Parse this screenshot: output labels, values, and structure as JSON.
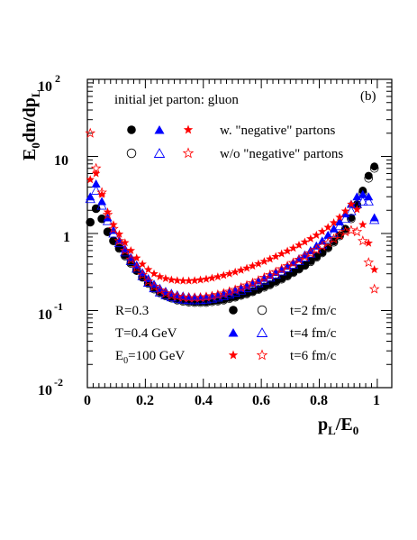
{
  "chart_data": {
    "type": "scatter",
    "panel_label": "(b)",
    "ylabel": "E0dn/dpL",
    "xlabel": "pL/E0",
    "yscale": "log",
    "xlim": [
      0,
      1.05
    ],
    "ylim": [
      0.01,
      100
    ],
    "x_ticks": [
      "0",
      "0.2",
      "0.4",
      "0.6",
      "0.8",
      "1"
    ],
    "y_ticks": [
      {
        "value": 100,
        "label": "10 2"
      },
      {
        "value": 10,
        "label": "10"
      },
      {
        "value": 1,
        "label": "1"
      },
      {
        "value": 0.1,
        "label": "10 -1"
      },
      {
        "value": 0.01,
        "label": "10 -2"
      }
    ],
    "legend_header": "initial jet parton: gluon",
    "legend_rows": [
      "w.  \"negative\" partons",
      "w/o \"negative\" partons"
    ],
    "params": [
      "R=0.3",
      "T=0.4 GeV",
      "E0=100 GeV"
    ],
    "time_labels": [
      "t=2 fm/c",
      "t=4 fm/c",
      "t=6 fm/c"
    ],
    "colors": {
      "t2": "#000000",
      "t4": "#0000ff",
      "t6": "#ff0000"
    },
    "x": [
      0.01,
      0.03,
      0.05,
      0.07,
      0.09,
      0.11,
      0.13,
      0.15,
      0.17,
      0.19,
      0.21,
      0.23,
      0.25,
      0.27,
      0.29,
      0.31,
      0.33,
      0.35,
      0.37,
      0.39,
      0.41,
      0.43,
      0.45,
      0.47,
      0.49,
      0.51,
      0.53,
      0.55,
      0.57,
      0.59,
      0.61,
      0.63,
      0.65,
      0.67,
      0.69,
      0.71,
      0.73,
      0.75,
      0.77,
      0.79,
      0.81,
      0.83,
      0.85,
      0.87,
      0.89,
      0.91,
      0.93,
      0.95,
      0.97,
      0.99
    ],
    "series": [
      {
        "name": "t=2 fm/c w. \"negative\" partons",
        "marker": "circle-filled",
        "color": "#000000",
        "values": [
          1.4,
          2.1,
          1.55,
          1.05,
          0.81,
          0.65,
          0.52,
          0.42,
          0.33,
          0.27,
          0.23,
          0.195,
          0.175,
          0.158,
          0.148,
          0.14,
          0.135,
          0.132,
          0.13,
          0.13,
          0.13,
          0.133,
          0.136,
          0.14,
          0.146,
          0.152,
          0.16,
          0.168,
          0.178,
          0.19,
          0.205,
          0.22,
          0.24,
          0.26,
          0.285,
          0.315,
          0.35,
          0.39,
          0.44,
          0.5,
          0.57,
          0.66,
          0.79,
          0.95,
          1.15,
          1.6,
          2.4,
          3.6,
          5.6,
          7.4
        ]
      },
      {
        "name": "t=2 fm/c w/o \"negative\" partons",
        "marker": "circle-open",
        "color": "#000000",
        "values": [
          1.4,
          2.1,
          1.55,
          1.05,
          0.8,
          0.64,
          0.51,
          0.41,
          0.33,
          0.27,
          0.225,
          0.19,
          0.17,
          0.155,
          0.145,
          0.137,
          0.132,
          0.129,
          0.127,
          0.127,
          0.127,
          0.13,
          0.133,
          0.137,
          0.143,
          0.149,
          0.157,
          0.165,
          0.175,
          0.187,
          0.2,
          0.216,
          0.235,
          0.255,
          0.28,
          0.31,
          0.345,
          0.385,
          0.43,
          0.49,
          0.56,
          0.65,
          0.77,
          0.93,
          1.12,
          1.55,
          2.3,
          3.4,
          5.2,
          7.0
        ]
      },
      {
        "name": "t=4 fm/c w. \"negative\" partons",
        "marker": "triangle-filled",
        "color": "#0000ff",
        "values": [
          3.0,
          4.4,
          2.6,
          1.6,
          1.1,
          0.82,
          0.63,
          0.49,
          0.39,
          0.31,
          0.26,
          0.22,
          0.195,
          0.178,
          0.168,
          0.16,
          0.155,
          0.152,
          0.15,
          0.15,
          0.152,
          0.155,
          0.16,
          0.167,
          0.175,
          0.185,
          0.196,
          0.21,
          0.225,
          0.243,
          0.263,
          0.286,
          0.313,
          0.343,
          0.378,
          0.42,
          0.47,
          0.53,
          0.6,
          0.69,
          0.8,
          0.95,
          1.15,
          1.42,
          1.8,
          2.4,
          3.0,
          3.2,
          3.0,
          1.6
        ]
      },
      {
        "name": "t=4 fm/c w/o \"negative\" partons",
        "marker": "triangle-open",
        "color": "#0000ff",
        "values": [
          2.8,
          3.6,
          2.3,
          1.45,
          1.0,
          0.75,
          0.57,
          0.44,
          0.35,
          0.28,
          0.23,
          0.195,
          0.172,
          0.158,
          0.149,
          0.143,
          0.139,
          0.137,
          0.136,
          0.137,
          0.139,
          0.143,
          0.148,
          0.154,
          0.162,
          0.171,
          0.182,
          0.195,
          0.21,
          0.227,
          0.246,
          0.268,
          0.294,
          0.323,
          0.356,
          0.395,
          0.44,
          0.49,
          0.55,
          0.63,
          0.72,
          0.85,
          1.02,
          1.25,
          1.55,
          1.95,
          2.4,
          2.6,
          2.6,
          1.5
        ]
      },
      {
        "name": "t=6 fm/c w. \"negative\" partons",
        "marker": "star-filled",
        "color": "#ff0000",
        "values": [
          5.0,
          6.0,
          3.2,
          1.9,
          1.3,
          0.98,
          0.76,
          0.6,
          0.48,
          0.4,
          0.34,
          0.3,
          0.275,
          0.26,
          0.25,
          0.245,
          0.243,
          0.243,
          0.245,
          0.25,
          0.256,
          0.264,
          0.274,
          0.286,
          0.3,
          0.316,
          0.334,
          0.355,
          0.378,
          0.404,
          0.433,
          0.466,
          0.503,
          0.545,
          0.592,
          0.645,
          0.705,
          0.775,
          0.855,
          0.95,
          1.06,
          1.2,
          1.38,
          1.62,
          1.95,
          2.4,
          2.05,
          1.3,
          0.75,
          0.34
        ]
      },
      {
        "name": "t=6 fm/c w/o \"negative\" partons",
        "marker": "star-open",
        "color": "#ff0000",
        "values": [
          20.0,
          7.0,
          3.4,
          1.75,
          1.15,
          0.8,
          0.6,
          0.46,
          0.36,
          0.29,
          0.24,
          0.205,
          0.183,
          0.168,
          0.158,
          0.152,
          0.148,
          0.146,
          0.146,
          0.147,
          0.15,
          0.154,
          0.16,
          0.167,
          0.176,
          0.186,
          0.198,
          0.212,
          0.228,
          0.246,
          0.267,
          0.29,
          0.316,
          0.345,
          0.378,
          0.415,
          0.456,
          0.503,
          0.556,
          0.615,
          0.685,
          0.76,
          0.85,
          0.95,
          1.05,
          1.1,
          1.05,
          0.8,
          0.42,
          0.19
        ]
      }
    ]
  },
  "text": {
    "panel_label": "(b)",
    "header": "initial jet parton: gluon",
    "leg_with": "w.  \"negative\" partons",
    "leg_without": "w/o \"negative\" partons",
    "param_r": "R=0.3",
    "param_t": "T=0.4 GeV",
    "param_e0_prefix": "E",
    "param_e0_sub": "0",
    "param_e0_suffix": "=100 GeV",
    "time2": "t=2 fm/c",
    "time4": "t=4 fm/c",
    "time6": "t=6 fm/c",
    "ylab_E": "E",
    "ylab_0": "0",
    "ylab_mid": "dn/dp",
    "ylab_L": "L",
    "xlab_p": "p",
    "xlab_L": "L",
    "xlab_slash": "/E",
    "xlab_0": "0",
    "xt0": "0",
    "xt1": "0.2",
    "xt2": "0.4",
    "xt3": "0.6",
    "xt4": "0.8",
    "xt5": "1",
    "yt100_base": "10",
    "yt100_exp": "2",
    "yt10": "10",
    "yt1": "1",
    "yt01_base": "10",
    "yt01_exp": "-1",
    "yt001_base": "10",
    "yt001_exp": "-2"
  }
}
